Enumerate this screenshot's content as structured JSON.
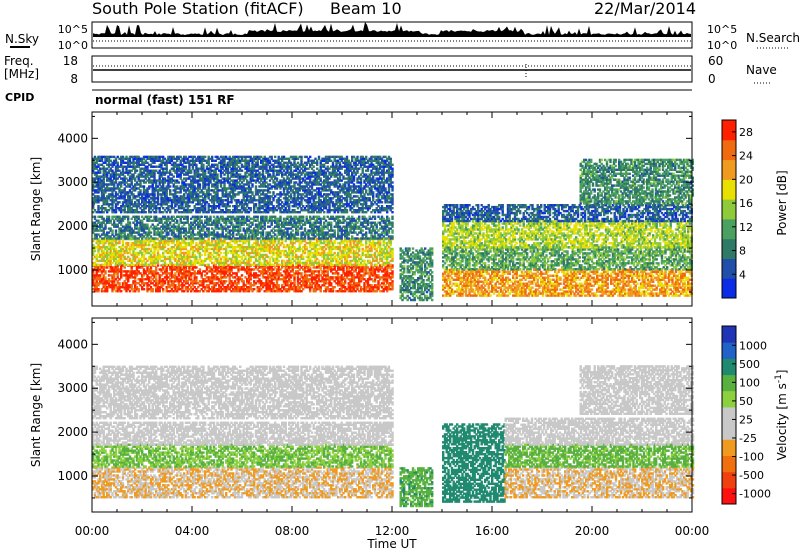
{
  "header": {
    "station": "South Pole Station (fitACF)",
    "beam": "Beam 10",
    "date": "22/Mar/2014"
  },
  "top_panels": {
    "nsky_label": "N.Sky",
    "nsky_ticks": [
      "10^5",
      "10^0"
    ],
    "nsearch_label": "N.Search",
    "nsearch_ticks": [
      "10^5",
      "10^0"
    ],
    "freq_label": "Freq.",
    "freq_unit": "[MHz]",
    "freq_ticks": [
      "18",
      "8"
    ],
    "nave_label": "Nave",
    "nave_ticks": [
      "60",
      "0"
    ],
    "cpid_label": "CPID",
    "cpid_value": "normal (fast) 151 RF"
  },
  "colors": {
    "power_scale": [
      "#0a2ce6",
      "#1f4fa8",
      "#2f7a66",
      "#4aa060",
      "#8fca3a",
      "#e8e000",
      "#f09a20",
      "#f06a10",
      "#ff2000"
    ],
    "velocity_scale": [
      "#1f35b8",
      "#2062c8",
      "#208a70",
      "#58b040",
      "#8cd040",
      "#c8c8c8",
      "#c8c8c8",
      "#f09a20",
      "#f07010",
      "#f04010",
      "#ff1010"
    ]
  },
  "chart_data": [
    {
      "type": "heatmap",
      "name": "power",
      "ylabel": "Slant Range [km]",
      "xlabel": "Time UT",
      "x_ticks": [
        "00:00",
        "04:00",
        "08:00",
        "12:00",
        "16:00",
        "20:00",
        "00:00"
      ],
      "xlim": [
        0,
        24
      ],
      "ylim": [
        180,
        4600
      ],
      "y_ticks": [
        1000,
        2000,
        3000,
        4000
      ],
      "colorbar_label": "Power [dB]",
      "colorbar_ticks": [
        4,
        8,
        12,
        16,
        20,
        24,
        28
      ],
      "colorbar_range": [
        0,
        30
      ],
      "bands": [
        {
          "t0": 0,
          "t1": 12,
          "r0": 500,
          "r1": 1100,
          "v": 27
        },
        {
          "t0": 0,
          "t1": 12,
          "r0": 1100,
          "r1": 1700,
          "v": 18
        },
        {
          "t0": 0,
          "t1": 12,
          "r0": 1700,
          "r1": 2200,
          "v": 8
        },
        {
          "t0": 0,
          "t1": 12,
          "r0": 2300,
          "r1": 3600,
          "v": 6
        },
        {
          "t0": 12.3,
          "t1": 13.6,
          "r0": 300,
          "r1": 1500,
          "v": 10
        },
        {
          "t0": 14,
          "t1": 24,
          "r0": 400,
          "r1": 1000,
          "v": 22
        },
        {
          "t0": 14,
          "t1": 24,
          "r0": 1000,
          "r1": 1500,
          "v": 12
        },
        {
          "t0": 14,
          "t1": 24,
          "r0": 1500,
          "r1": 2100,
          "v": 16
        },
        {
          "t0": 14,
          "t1": 24,
          "r0": 2100,
          "r1": 2500,
          "v": 6
        },
        {
          "t0": 19.5,
          "t1": 24,
          "r0": 2500,
          "r1": 3500,
          "v": 10
        }
      ]
    },
    {
      "type": "heatmap",
      "name": "velocity",
      "ylabel": "Slant Range [km]",
      "xlabel": "Time UT",
      "x_ticks": [
        "00:00",
        "04:00",
        "08:00",
        "12:00",
        "16:00",
        "20:00",
        "00:00"
      ],
      "xlim": [
        0,
        24
      ],
      "ylim": [
        180,
        4600
      ],
      "y_ticks": [
        1000,
        2000,
        3000,
        4000
      ],
      "colorbar_label": "Velocity [m s^-1]",
      "colorbar_ticks": [
        "1000",
        "500",
        "100",
        "50",
        "25",
        "-25",
        "-100",
        "-500",
        "-1000"
      ],
      "bands": [
        {
          "t0": 0,
          "t1": 12,
          "r0": 500,
          "r1": 1200,
          "v": -100
        },
        {
          "t0": 0,
          "t1": 12,
          "r0": 1200,
          "r1": 1700,
          "v": 50
        },
        {
          "t0": 0,
          "t1": 12,
          "r0": 1700,
          "r1": 2200,
          "v": 0
        },
        {
          "t0": 0,
          "t1": 12,
          "r0": 2300,
          "r1": 3500,
          "v": 0
        },
        {
          "t0": 12.3,
          "t1": 13.6,
          "r0": 300,
          "r1": 1200,
          "v": 80
        },
        {
          "t0": 14,
          "t1": 16.5,
          "r0": 400,
          "r1": 2200,
          "v": 200
        },
        {
          "t0": 16.5,
          "t1": 24,
          "r0": 500,
          "r1": 1200,
          "v": -100
        },
        {
          "t0": 16.5,
          "t1": 24,
          "r0": 1200,
          "r1": 1700,
          "v": 60
        },
        {
          "t0": 16.5,
          "t1": 24,
          "r0": 1700,
          "r1": 2300,
          "v": 0
        },
        {
          "t0": 19.5,
          "t1": 24,
          "r0": 2400,
          "r1": 3500,
          "v": 0
        }
      ]
    }
  ]
}
